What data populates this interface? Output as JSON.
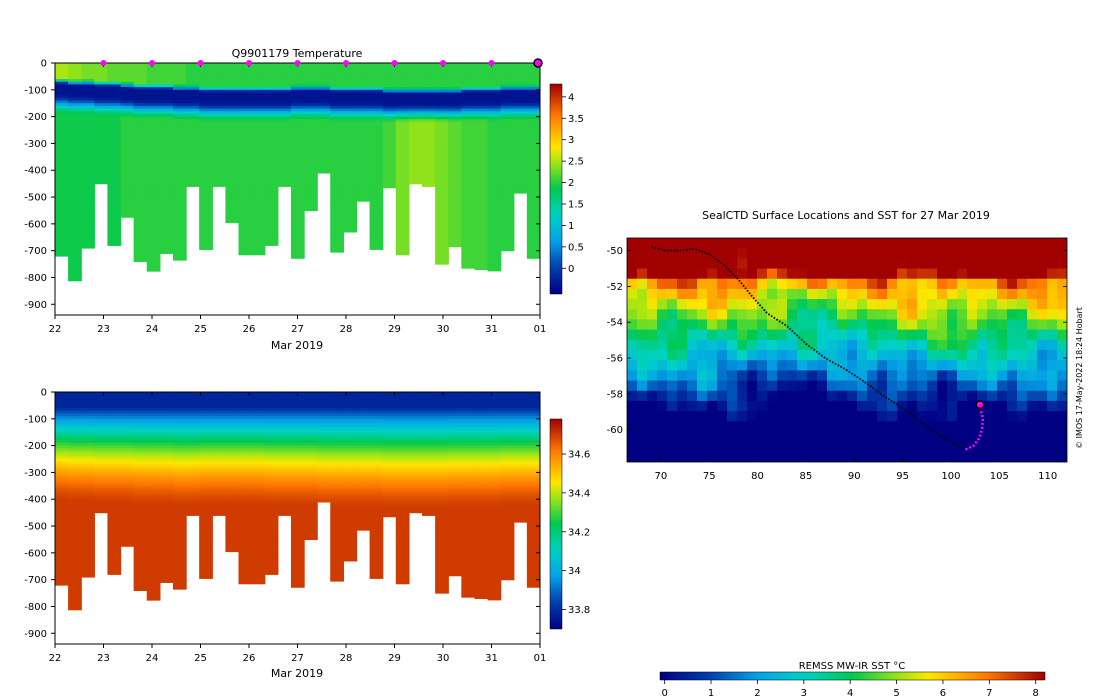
{
  "chart_data": [
    {
      "type": "heatmap",
      "title": "Q9901179  Temperature",
      "xlabel": "Mar 2019",
      "ylabel": "",
      "x_ticks": [
        "22",
        "23",
        "24",
        "25",
        "26",
        "27",
        "28",
        "29",
        "30",
        "31",
        "01"
      ],
      "x_range": [
        22,
        32
      ],
      "y_ticks": [
        0,
        -100,
        -200,
        -300,
        -400,
        -500,
        -600,
        -700,
        -800,
        -900
      ],
      "ylim": [
        -940,
        0
      ],
      "colorbar_ticks": [
        "0",
        "0.5",
        "1",
        "1.5",
        "2",
        "2.5",
        "3",
        "3.5",
        "4"
      ],
      "colorbar_range": [
        -0.6,
        4.3
      ],
      "profile_markers_day": [
        23,
        24,
        25,
        26,
        27,
        28,
        29,
        30,
        31
      ],
      "last_position_day": 32,
      "profile_max_depth": [
        720,
        812,
        690,
        450,
        680,
        575,
        740,
        776,
        710,
        735,
        460,
        695,
        460,
        595,
        715,
        715,
        680,
        460,
        728,
        550,
        410,
        705,
        630,
        515,
        695,
        465,
        715,
        450,
        460,
        750,
        685,
        765,
        770,
        775,
        700,
        485,
        728
      ],
      "surface_temp": [
        2.5,
        2.4,
        2.3,
        2.3,
        2.2,
        2.2,
        2.2,
        2.1,
        2.1,
        2.1,
        2.0,
        2.0,
        2.0,
        2.0,
        2.0,
        2.0,
        2.0,
        2.0,
        2.0,
        2.0,
        2.0,
        2.0,
        2.0,
        2.0,
        2.0,
        2.0,
        2.0,
        2.0,
        2.0,
        2.0,
        2.0,
        2.0,
        2.0,
        2.0,
        2.0,
        2.0,
        2.0
      ],
      "min_temp": -0.4,
      "min_layer_depth": [
        80,
        85,
        85,
        90,
        90,
        95,
        100,
        100,
        100,
        105,
        105,
        110,
        110,
        110,
        110,
        110,
        110,
        110,
        105,
        105,
        105,
        110,
        110,
        110,
        110,
        115,
        115,
        115,
        115,
        115,
        115,
        110,
        110,
        110,
        105,
        105,
        105
      ],
      "deep_temp": [
        1.9,
        1.9,
        1.9,
        1.9,
        1.9,
        2.0,
        2.0,
        2.0,
        2.0,
        2.0,
        2.0,
        2.0,
        2.0,
        2.0,
        2.0,
        2.0,
        2.0,
        2.0,
        2.0,
        2.0,
        2.0,
        2.0,
        2.0,
        2.0,
        2.0,
        2.1,
        2.3,
        2.4,
        2.4,
        2.3,
        2.2,
        2.1,
        2.1,
        2.0,
        2.0,
        2.0,
        2.0
      ]
    },
    {
      "type": "heatmap",
      "title": "",
      "xlabel": "Mar 2019",
      "ylabel": "",
      "x_ticks": [
        "22",
        "23",
        "24",
        "25",
        "26",
        "27",
        "28",
        "29",
        "30",
        "31",
        "01"
      ],
      "x_range": [
        22,
        32
      ],
      "y_ticks": [
        0,
        -100,
        -200,
        -300,
        -400,
        -500,
        -600,
        -700,
        -800,
        -900
      ],
      "ylim": [
        -940,
        0
      ],
      "colorbar_ticks": [
        "33.8",
        "34",
        "34.2",
        "34.4",
        "34.6"
      ],
      "colorbar_range": [
        33.7,
        34.78
      ],
      "surface_value": 33.78,
      "deep_value": 34.7,
      "halocline_depth": [
        190,
        195,
        195,
        200,
        200,
        200,
        205,
        205,
        205,
        210,
        210,
        205,
        205,
        205,
        205,
        205,
        210,
        210,
        210,
        210,
        215,
        215,
        215,
        215,
        215,
        220,
        220,
        220,
        220,
        220,
        215,
        215,
        215,
        215,
        210,
        210,
        210
      ]
    },
    {
      "type": "heatmap",
      "title": "SealCTD Surface Locations and SST for 27 Mar 2019",
      "xlabel": "",
      "ylabel": "",
      "x_ticks": [
        "70",
        "75",
        "80",
        "85",
        "90",
        "95",
        "100",
        "105",
        "110"
      ],
      "xlim": [
        66.5,
        112
      ],
      "y_ticks": [
        "-50",
        "-52",
        "-54",
        "-56",
        "-58",
        "-60"
      ],
      "ylim": [
        -61.8,
        -49.3
      ],
      "colorbar_label": "REMSS MW-IR SST °C",
      "colorbar_ticks": [
        "0",
        "1",
        "2",
        "3",
        "4",
        "5",
        "6",
        "7",
        "8"
      ],
      "colorbar_range": [
        -0.1,
        8.2
      ],
      "credit": "© IMOS 17-May-2022 18:24 Hobart",
      "track_past": [
        [
          69.0,
          -49.8
        ],
        [
          70.5,
          -50.0
        ],
        [
          72.0,
          -50.0
        ],
        [
          73.5,
          -49.9
        ],
        [
          75.0,
          -50.2
        ],
        [
          76.5,
          -50.8
        ],
        [
          78.0,
          -51.6
        ],
        [
          79.5,
          -52.6
        ],
        [
          81.0,
          -53.5
        ],
        [
          83.0,
          -54.2
        ],
        [
          85.0,
          -55.2
        ],
        [
          87.0,
          -56.0
        ],
        [
          89.0,
          -56.6
        ],
        [
          91.0,
          -57.3
        ],
        [
          93.0,
          -58.1
        ],
        [
          95.0,
          -58.8
        ],
        [
          97.0,
          -59.6
        ],
        [
          98.5,
          -60.2
        ],
        [
          100.0,
          -60.7
        ],
        [
          101.5,
          -61.1
        ]
      ],
      "track_recent": [
        [
          101.5,
          -61.1
        ],
        [
          102.3,
          -60.9
        ],
        [
          102.9,
          -60.5
        ],
        [
          103.2,
          -60.0
        ],
        [
          103.3,
          -59.4
        ],
        [
          103.1,
          -58.9
        ],
        [
          103.0,
          -58.6
        ]
      ],
      "current_position": [
        103.0,
        -58.6
      ],
      "sst_pattern": "warm-north-cold-south"
    }
  ]
}
